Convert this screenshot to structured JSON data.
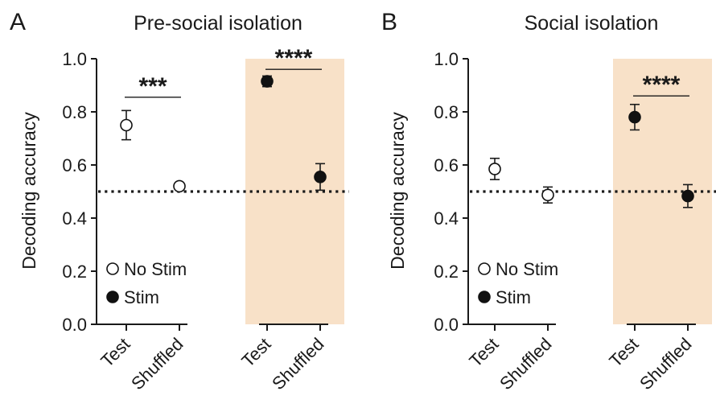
{
  "chart_data": [
    {
      "type": "scatter",
      "panel": "A",
      "title": "Pre-social isolation",
      "ylabel": "Decoding accuracy",
      "ylim": [
        0.0,
        1.0
      ],
      "yticks": [
        "0.0",
        "0.2",
        "0.4",
        "0.6",
        "0.8",
        "1.0"
      ],
      "categories": [
        "Test",
        "Shuffled",
        "Test",
        "Shuffled"
      ],
      "chance_level": 0.5,
      "series": [
        {
          "name": "No Stim",
          "marker": "open",
          "points": [
            {
              "category_index": 0,
              "y": 0.75,
              "err": 0.055
            },
            {
              "category_index": 1,
              "y": 0.52,
              "err": 0.0
            }
          ]
        },
        {
          "name": "Stim",
          "marker": "filled",
          "points": [
            {
              "category_index": 2,
              "y": 0.915,
              "err": 0.02
            },
            {
              "category_index": 3,
              "y": 0.555,
              "err": 0.05
            }
          ]
        }
      ],
      "significance": [
        {
          "from": 0,
          "to": 1,
          "y": 0.855,
          "label": "***"
        },
        {
          "from": 2,
          "to": 3,
          "y": 0.96,
          "label": "****"
        }
      ],
      "highlight": {
        "from": 2,
        "to": 3,
        "color": "#f8e1c8"
      },
      "legend": "bottom-left"
    },
    {
      "type": "scatter",
      "panel": "B",
      "title": "Social isolation",
      "ylabel": "Decoding accuracy",
      "ylim": [
        0.0,
        1.0
      ],
      "yticks": [
        "0.0",
        "0.2",
        "0.4",
        "0.6",
        "0.8",
        "1.0"
      ],
      "categories": [
        "Test",
        "Shuffled",
        "Test",
        "Shuffled"
      ],
      "chance_level": 0.5,
      "series": [
        {
          "name": "No Stim",
          "marker": "open",
          "points": [
            {
              "category_index": 0,
              "y": 0.585,
              "err": 0.04
            },
            {
              "category_index": 1,
              "y": 0.487,
              "err": 0.03
            }
          ]
        },
        {
          "name": "Stim",
          "marker": "filled",
          "points": [
            {
              "category_index": 2,
              "y": 0.78,
              "err": 0.048
            },
            {
              "category_index": 3,
              "y": 0.483,
              "err": 0.043
            }
          ]
        }
      ],
      "significance": [
        {
          "from": 2,
          "to": 3,
          "y": 0.86,
          "label": "****"
        }
      ],
      "highlight": {
        "from": 2,
        "to": 3,
        "color": "#f8e1c8"
      },
      "legend": "bottom-left"
    }
  ]
}
